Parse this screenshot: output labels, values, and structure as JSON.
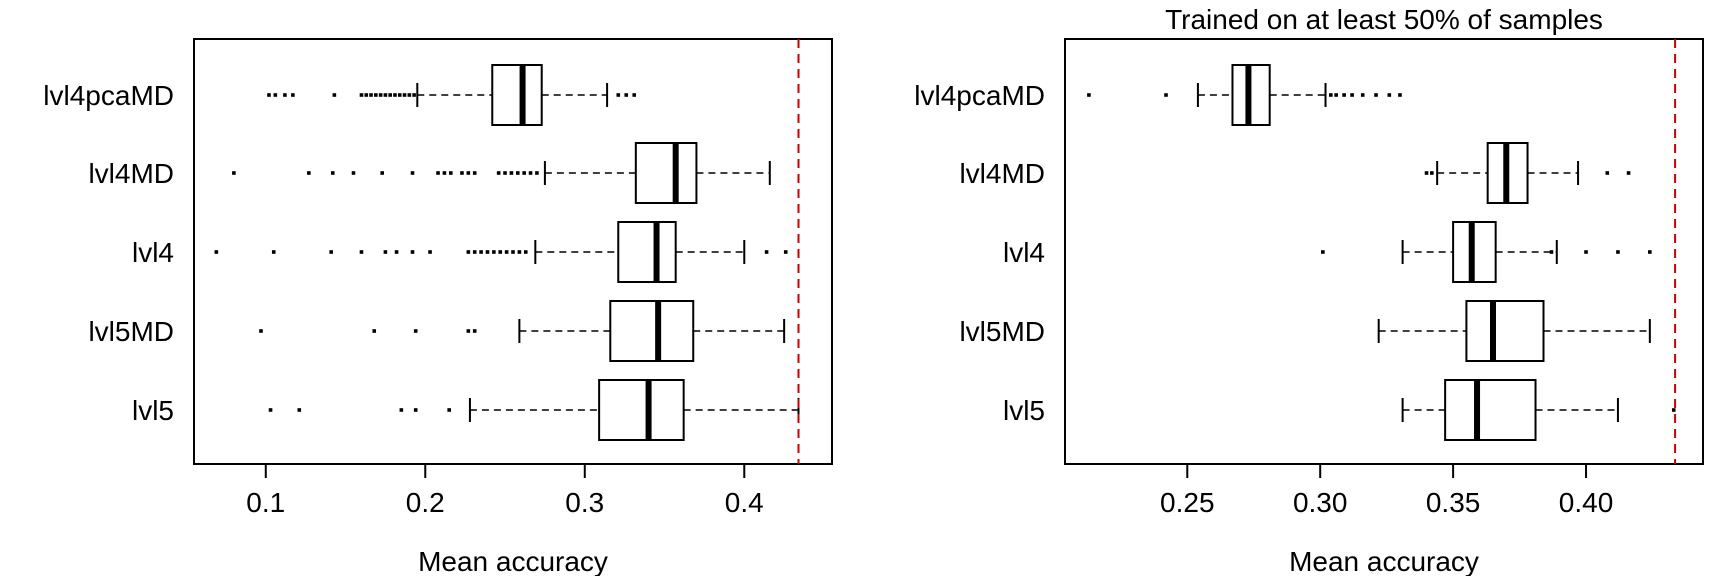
{
  "chart_data": [
    {
      "type": "boxplot",
      "orientation": "horizontal",
      "title": "",
      "xlabel": "Mean accuracy",
      "ylabel": "",
      "xlim": [
        0.055,
        0.455
      ],
      "xticks": [
        0.1,
        0.2,
        0.3,
        0.4
      ],
      "tick_labels": [
        "0.1",
        "0.2",
        "0.3",
        "0.4"
      ],
      "reference_line": {
        "x": 0.434,
        "color": "#cc0000",
        "style": "dashed"
      },
      "categories": [
        "lvl4pcaMD",
        "lvl4MD",
        "lvl4",
        "lvl5MD",
        "lvl5"
      ],
      "boxes": [
        {
          "name": "lvl4pcaMD",
          "whisker_low": 0.195,
          "q1": 0.242,
          "median": 0.261,
          "q3": 0.273,
          "whisker_high": 0.314,
          "outliers": [
            0.102,
            0.106,
            0.112,
            0.117,
            0.143,
            0.16,
            0.163,
            0.166,
            0.169,
            0.172,
            0.175,
            0.178,
            0.181,
            0.184,
            0.187,
            0.19,
            0.193,
            0.321,
            0.326,
            0.331
          ]
        },
        {
          "name": "lvl4MD",
          "whisker_low": 0.275,
          "q1": 0.332,
          "median": 0.357,
          "q3": 0.37,
          "whisker_high": 0.416,
          "outliers": [
            0.08,
            0.127,
            0.142,
            0.155,
            0.173,
            0.192,
            0.208,
            0.212,
            0.216,
            0.223,
            0.227,
            0.231,
            0.246,
            0.25,
            0.254,
            0.258,
            0.262,
            0.266,
            0.27
          ]
        },
        {
          "name": "lvl4",
          "whisker_low": 0.269,
          "q1": 0.321,
          "median": 0.345,
          "q3": 0.357,
          "whisker_high": 0.4,
          "outliers": [
            0.069,
            0.105,
            0.141,
            0.16,
            0.175,
            0.182,
            0.192,
            0.203,
            0.227,
            0.231,
            0.235,
            0.239,
            0.243,
            0.247,
            0.251,
            0.255,
            0.259,
            0.263,
            0.414,
            0.426
          ]
        },
        {
          "name": "lvl5MD",
          "whisker_low": 0.259,
          "q1": 0.316,
          "median": 0.346,
          "q3": 0.368,
          "whisker_high": 0.425,
          "outliers": [
            0.097,
            0.168,
            0.194,
            0.227,
            0.231
          ]
        },
        {
          "name": "lvl5",
          "whisker_low": 0.228,
          "q1": 0.309,
          "median": 0.34,
          "q3": 0.362,
          "whisker_high": 0.434,
          "outliers": [
            0.103,
            0.121,
            0.185,
            0.194,
            0.215
          ]
        }
      ]
    },
    {
      "type": "boxplot",
      "orientation": "horizontal",
      "title": "Trained on at least 50% of samples",
      "xlabel": "Mean accuracy",
      "ylabel": "",
      "xlim": [
        0.204,
        0.444
      ],
      "xticks": [
        0.25,
        0.3,
        0.35,
        0.4
      ],
      "tick_labels": [
        "0.25",
        "0.30",
        "0.35",
        "0.40"
      ],
      "reference_line": {
        "x": 0.4335,
        "color": "#cc0000",
        "style": "dashed"
      },
      "categories": [
        "lvl4pcaMD",
        "lvl4MD",
        "lvl4",
        "lvl5MD",
        "lvl5"
      ],
      "boxes": [
        {
          "name": "lvl4pcaMD",
          "whisker_low": 0.254,
          "q1": 0.267,
          "median": 0.273,
          "q3": 0.281,
          "whisker_high": 0.302,
          "outliers": [
            0.213,
            0.242,
            0.304,
            0.306,
            0.309,
            0.312,
            0.316,
            0.321,
            0.326,
            0.33
          ]
        },
        {
          "name": "lvl4MD",
          "whisker_low": 0.344,
          "q1": 0.363,
          "median": 0.37,
          "q3": 0.378,
          "whisker_high": 0.397,
          "outliers": [
            0.34,
            0.342,
            0.408,
            0.416
          ]
        },
        {
          "name": "lvl4",
          "whisker_low": 0.331,
          "q1": 0.35,
          "median": 0.357,
          "q3": 0.366,
          "whisker_high": 0.389,
          "outliers": [
            0.301,
            0.387,
            0.4,
            0.412,
            0.424
          ]
        },
        {
          "name": "lvl5MD",
          "whisker_low": 0.322,
          "q1": 0.355,
          "median": 0.365,
          "q3": 0.384,
          "whisker_high": 0.424,
          "outliers": []
        },
        {
          "name": "lvl5",
          "whisker_low": 0.331,
          "q1": 0.347,
          "median": 0.359,
          "q3": 0.381,
          "whisker_high": 0.412,
          "outliers": [
            0.433
          ]
        }
      ]
    }
  ]
}
